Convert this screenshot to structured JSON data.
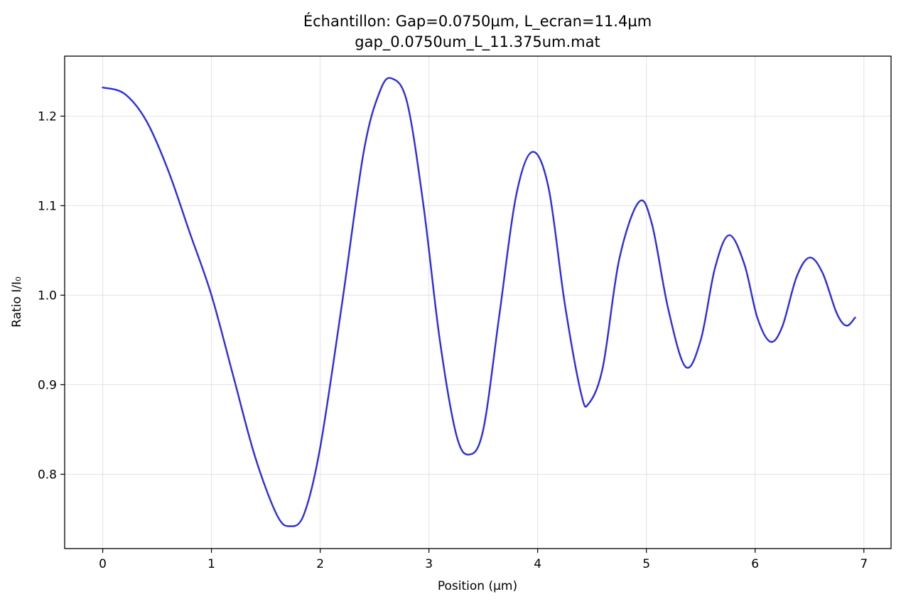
{
  "chart_data": {
    "type": "line",
    "title": "Échantillon: Gap=0.0750µm, L_ecran=11.4µm",
    "subtitle": "gap_0.0750um_L_11.375um.mat",
    "xlabel": "Position (µm)",
    "ylabel": "Ratio I/I₀",
    "xlim": [
      -0.35,
      7.25
    ],
    "ylim": [
      0.717,
      1.267
    ],
    "xticks": [
      0,
      1,
      2,
      3,
      4,
      5,
      6,
      7
    ],
    "xtick_labels": [
      "0",
      "1",
      "2",
      "3",
      "4",
      "5",
      "6",
      "7"
    ],
    "yticks": [
      0.8,
      0.9,
      1.0,
      1.1,
      1.2
    ],
    "ytick_labels": [
      "0.8",
      "0.9",
      "1.0",
      "1.1",
      "1.2"
    ],
    "grid": true,
    "series": [
      {
        "color": "#2b2be8",
        "x": [
          0.0,
          0.2,
          0.4,
          0.6,
          0.8,
          1.0,
          1.2,
          1.4,
          1.6,
          1.72,
          1.85,
          2.0,
          2.2,
          2.4,
          2.55,
          2.66,
          2.8,
          2.95,
          3.1,
          3.25,
          3.37,
          3.5,
          3.65,
          3.8,
          3.95,
          4.1,
          4.25,
          4.4,
          4.47,
          4.6,
          4.75,
          4.93,
          5.05,
          5.2,
          5.36,
          5.5,
          5.63,
          5.76,
          5.9,
          6.02,
          6.14,
          6.25,
          6.38,
          6.5,
          6.62,
          6.75,
          6.84,
          6.92
        ],
        "y": [
          1.232,
          1.225,
          1.195,
          1.14,
          1.07,
          1.0,
          0.91,
          0.82,
          0.755,
          0.742,
          0.755,
          0.83,
          0.99,
          1.16,
          1.228,
          1.242,
          1.215,
          1.1,
          0.95,
          0.845,
          0.822,
          0.85,
          0.98,
          1.11,
          1.16,
          1.12,
          0.99,
          0.89,
          0.879,
          0.92,
          1.04,
          1.104,
          1.08,
          0.985,
          0.92,
          0.95,
          1.03,
          1.067,
          1.035,
          0.975,
          0.948,
          0.965,
          1.02,
          1.042,
          1.025,
          0.98,
          0.966,
          0.975
        ]
      }
    ]
  }
}
